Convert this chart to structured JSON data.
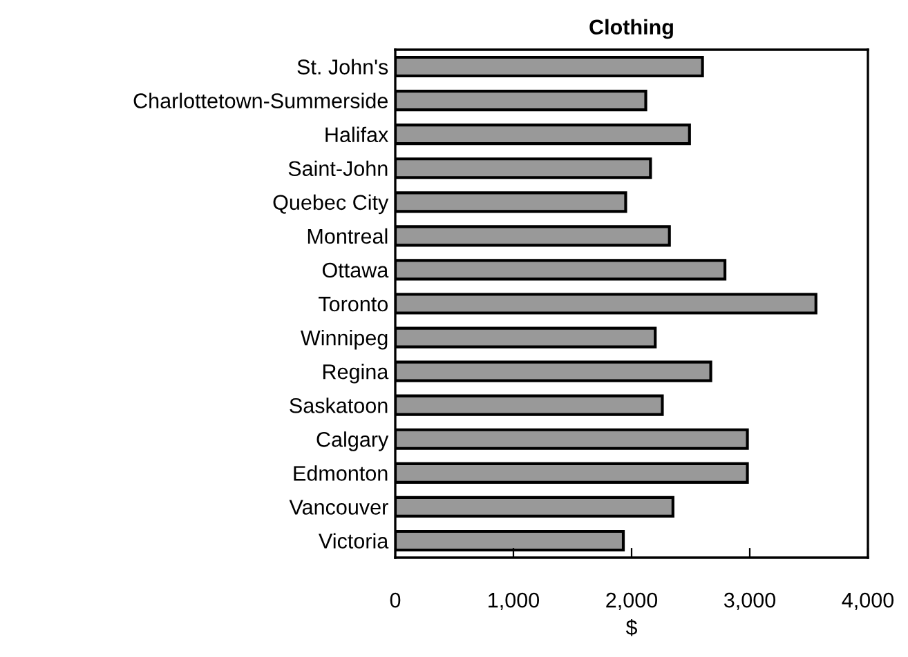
{
  "chart_data": {
    "type": "bar",
    "orientation": "horizontal",
    "title": "Clothing",
    "xlabel": "$",
    "categories": [
      "St. John's",
      "Charlottetown-Summerside",
      "Halifax",
      "Saint-John",
      "Quebec City",
      "Montreal",
      "Ottawa",
      "Toronto",
      "Winnipeg",
      "Regina",
      "Saskatoon",
      "Calgary",
      "Edmonton",
      "Vancouver",
      "Victoria"
    ],
    "values": [
      2600,
      2120,
      2490,
      2160,
      1950,
      2320,
      2790,
      3560,
      2200,
      2670,
      2260,
      2980,
      2980,
      2350,
      1930
    ],
    "color": "#999999",
    "xlim": [
      0,
      4000
    ],
    "xticks": [
      0,
      {
        "value": 1000,
        "label": "1,000"
      },
      {
        "value": 2000,
        "label": "2,000"
      },
      {
        "value": 3000,
        "label": "3,000"
      },
      {
        "value": 4000,
        "label": "4,000"
      }
    ],
    "grid": false,
    "legend": false
  }
}
